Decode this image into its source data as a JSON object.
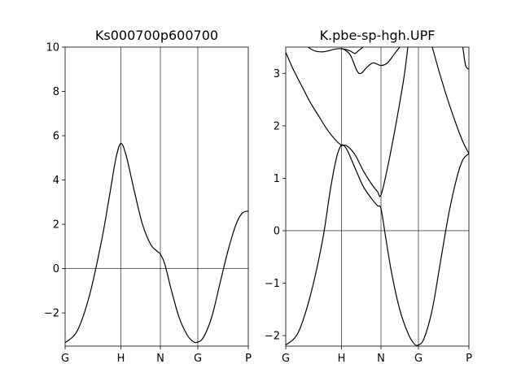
{
  "chart_data": [
    {
      "type": "line",
      "title": "Ks000700p600700",
      "xlabel": "",
      "ylabel": "",
      "x_ticks": [
        "G",
        "H",
        "N",
        "G",
        "P"
      ],
      "xlim": [
        0,
        4.5
      ],
      "ylim": [
        -3.5,
        10
      ],
      "y_ticks": [
        -2,
        0,
        2,
        4,
        6,
        8,
        10
      ],
      "y_tick_labels": [
        "−2",
        "0",
        "2",
        "4",
        "6",
        "8",
        "10"
      ],
      "hlines": [
        0
      ],
      "vlines": [
        1.37,
        2.34,
        3.26
      ],
      "series": [
        {
          "x": [
            0,
            0.3,
            0.6,
            0.9,
            1.1,
            1.25,
            1.37,
            1.5,
            1.7,
            1.9,
            2.1,
            2.25,
            2.34,
            2.45,
            2.6,
            2.8,
            3.0,
            3.15,
            3.26,
            3.4,
            3.6,
            3.8,
            4.0,
            4.2,
            4.35,
            4.5
          ],
          "y": [
            -3.35,
            -2.8,
            -1.2,
            1.3,
            3.4,
            5.0,
            5.65,
            5.1,
            3.5,
            2.0,
            1.1,
            0.8,
            0.65,
            0.2,
            -0.9,
            -2.2,
            -3.0,
            -3.3,
            -3.32,
            -3.1,
            -2.2,
            -0.7,
            0.8,
            2.0,
            2.5,
            2.6
          ]
        }
      ]
    },
    {
      "type": "line",
      "title": "K.pbe-sp-hgh.UPF",
      "xlabel": "",
      "ylabel": "",
      "x_ticks": [
        "G",
        "H",
        "N",
        "G",
        "P"
      ],
      "xlim": [
        0,
        4.5
      ],
      "ylim": [
        -2.2,
        3.5
      ],
      "y_ticks": [
        -2,
        -1,
        0,
        1,
        2,
        3
      ],
      "y_tick_labels": [
        "−2",
        "−1",
        "0",
        "1",
        "2",
        "3"
      ],
      "hlines": [
        0
      ],
      "vlines": [
        1.37,
        2.34,
        3.26
      ],
      "series": [
        {
          "x": [
            0,
            0.3,
            0.6,
            0.9,
            1.1,
            1.25,
            1.37,
            1.5,
            1.7,
            1.9,
            2.1,
            2.25,
            2.34,
            2.45,
            2.6,
            2.8,
            3.0,
            3.15,
            3.26,
            3.4,
            3.6,
            3.8,
            4.0,
            4.2,
            4.35,
            4.5
          ],
          "y": [
            -2.18,
            -1.95,
            -1.25,
            -0.2,
            0.8,
            1.4,
            1.63,
            1.55,
            1.2,
            0.85,
            0.62,
            0.48,
            0.42,
            -0.1,
            -0.8,
            -1.5,
            -1.95,
            -2.15,
            -2.18,
            -2.05,
            -1.5,
            -0.6,
            0.3,
            1.0,
            1.35,
            1.47
          ]
        },
        {
          "x": [
            0,
            0.2,
            0.4,
            0.6,
            0.8,
            1.0,
            1.2,
            1.37,
            1.5,
            1.7,
            1.9,
            2.1,
            2.25,
            2.34,
            2.5,
            2.7,
            2.9,
            3.0
          ],
          "y": [
            3.4,
            3.05,
            2.75,
            2.45,
            2.2,
            1.95,
            1.75,
            1.63,
            1.62,
            1.45,
            1.15,
            0.9,
            0.75,
            0.68,
            1.2,
            2.0,
            2.9,
            3.5
          ]
        },
        {
          "x": [
            3.6,
            3.8,
            4.0,
            4.2,
            4.35,
            4.5
          ],
          "y": [
            3.5,
            2.95,
            2.45,
            2.0,
            1.7,
            1.47
          ]
        },
        {
          "x": [
            0.55,
            0.65,
            0.75,
            0.9,
            1.05,
            1.2,
            1.37,
            1.5,
            1.6,
            1.75,
            1.85,
            2.0,
            2.15,
            2.34,
            2.5,
            2.65,
            2.8
          ],
          "y": [
            3.5,
            3.45,
            3.42,
            3.41,
            3.43,
            3.46,
            3.47,
            3.42,
            3.33,
            3.05,
            3.0,
            3.12,
            3.2,
            3.15,
            3.2,
            3.35,
            3.5
          ]
        },
        {
          "x": [
            1.37,
            1.5,
            1.6,
            1.7,
            1.8,
            1.9
          ],
          "y": [
            3.47,
            3.45,
            3.42,
            3.38,
            3.44,
            3.5
          ]
        },
        {
          "x": [
            4.35,
            4.42,
            4.5
          ],
          "y": [
            3.5,
            3.15,
            3.08
          ]
        }
      ]
    }
  ]
}
